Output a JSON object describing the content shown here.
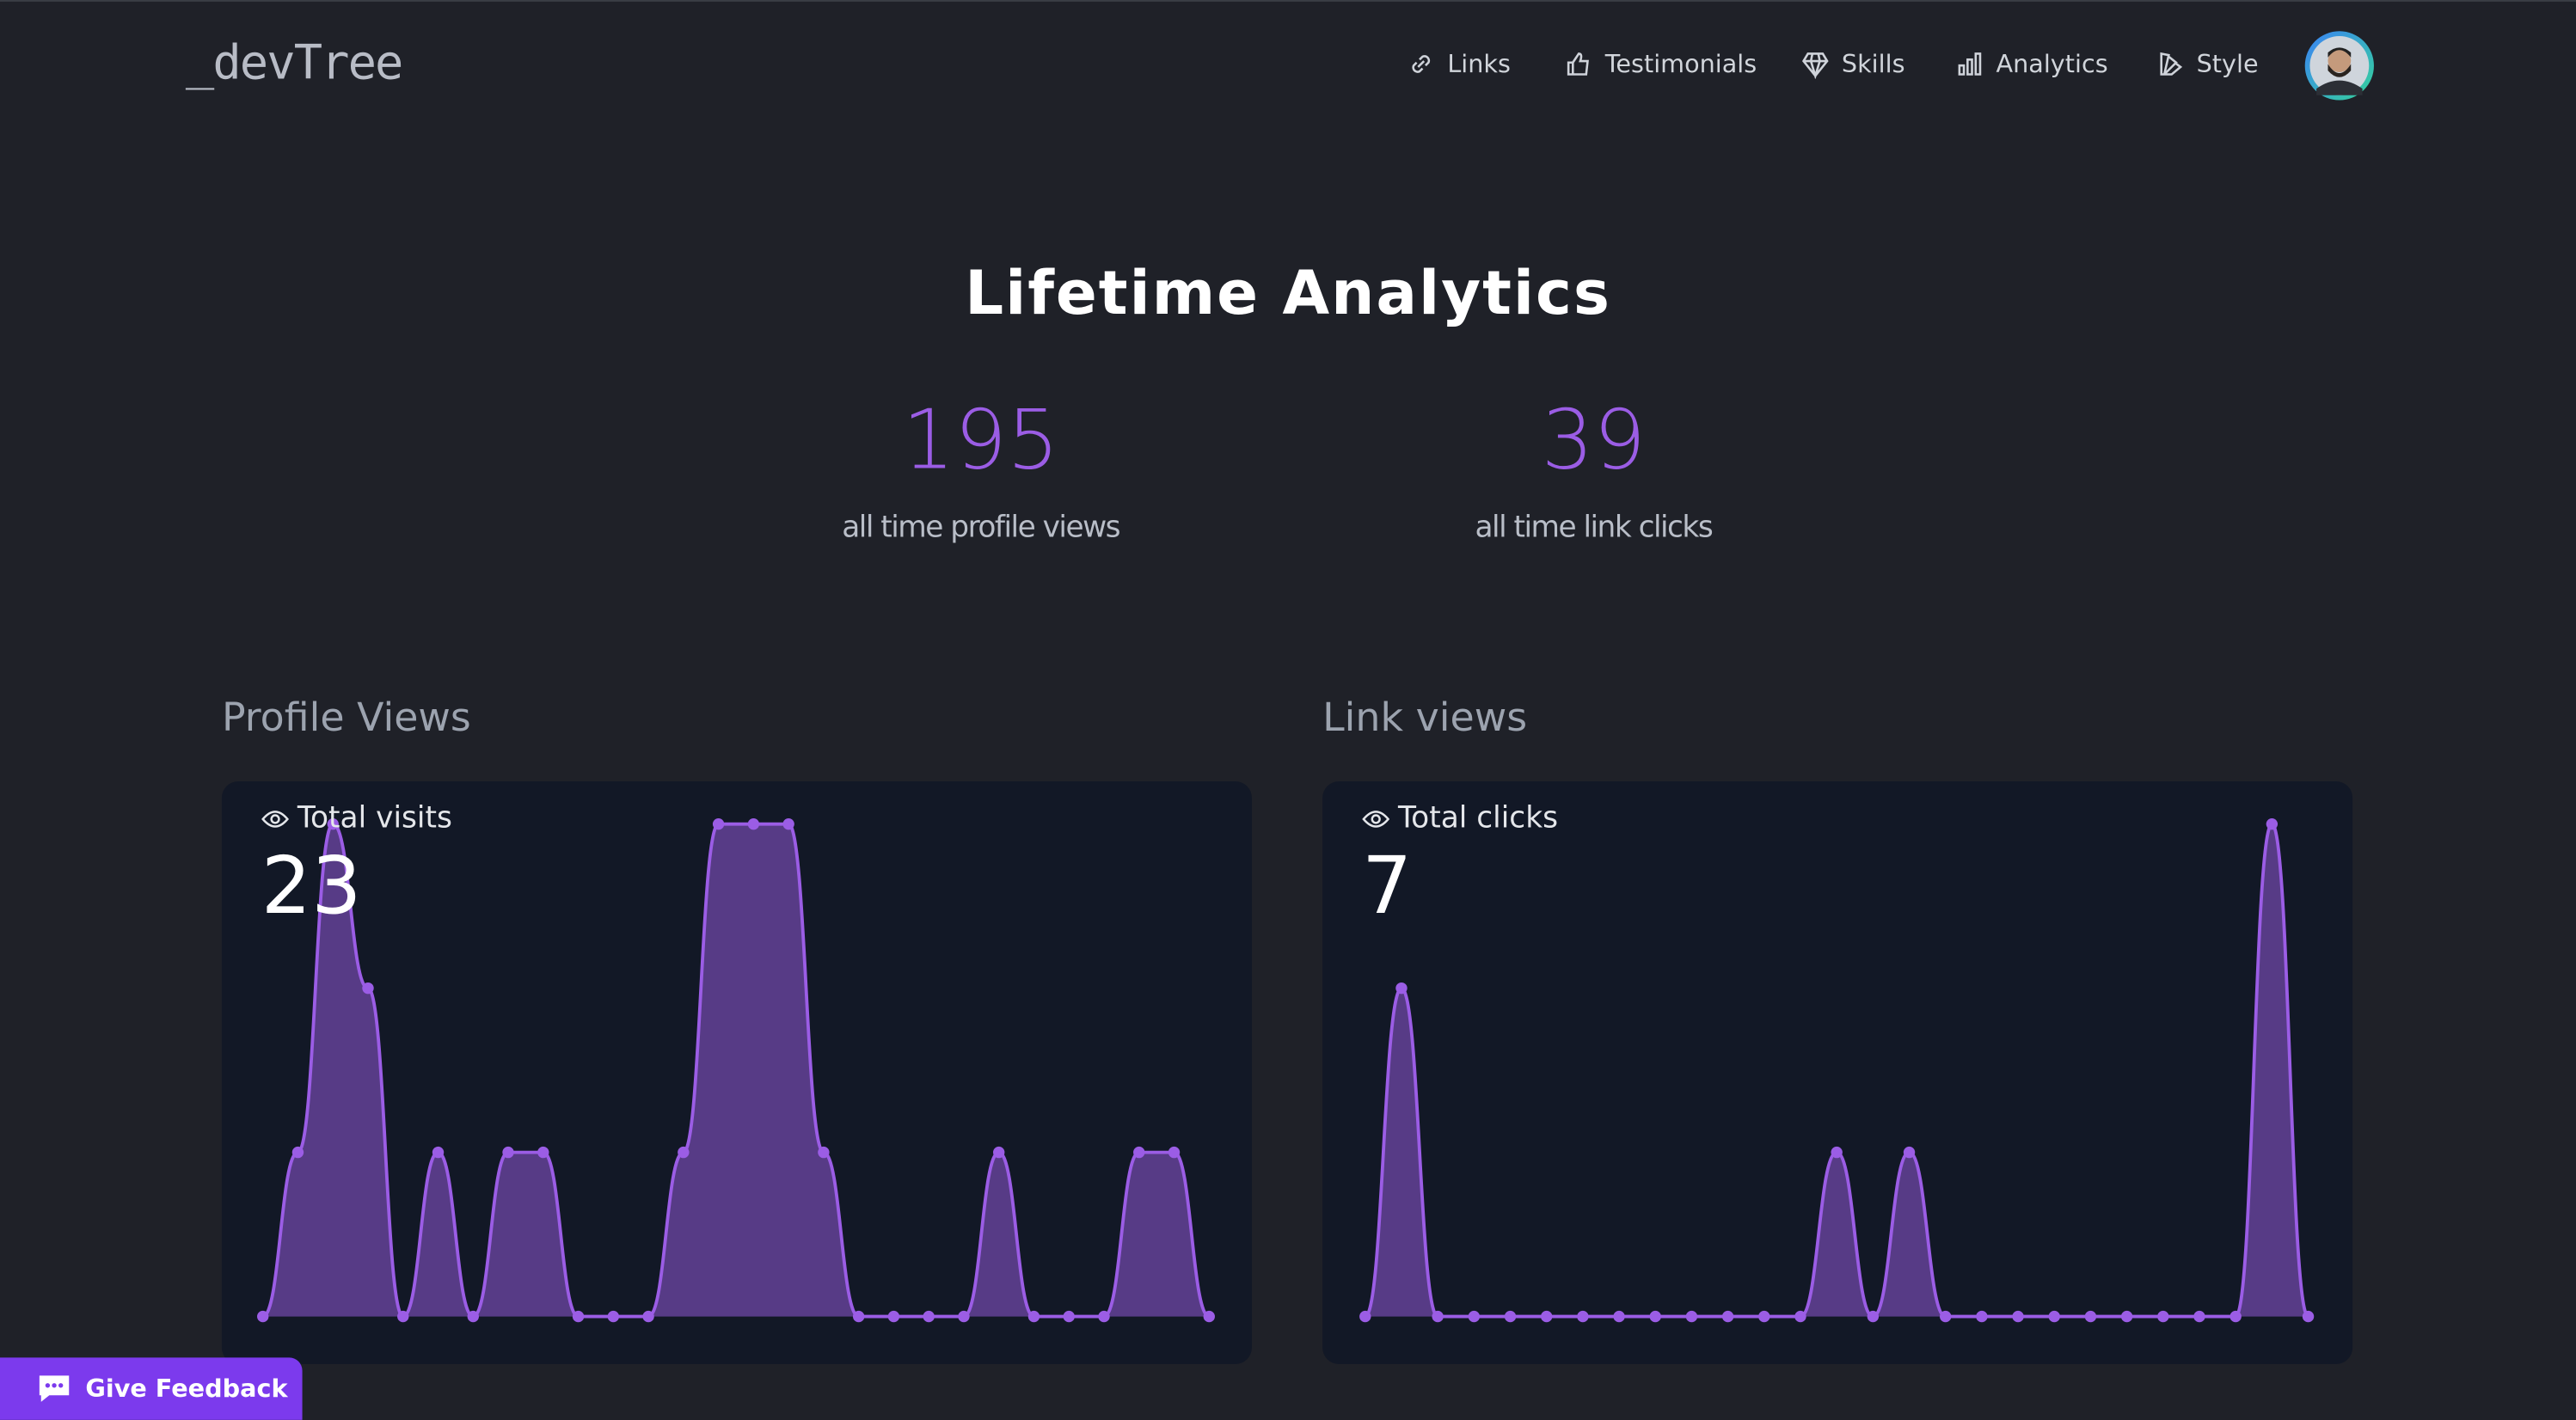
{
  "nav": {
    "logo": "_devTree",
    "items": [
      "Links",
      "Testimonials",
      "Skills",
      "Analytics",
      "Style"
    ]
  },
  "title": "Lifetime Analytics",
  "stats": [
    {
      "value": 195,
      "label": "all time profile views"
    },
    {
      "value": 39,
      "label": "all time link clicks"
    }
  ],
  "charts": [
    {
      "type": "area",
      "heading": "Profile Views",
      "label": "Total visits",
      "total": 23,
      "color": "#9b5de5",
      "ylim": [
        0,
        3
      ],
      "values": [
        0,
        1,
        3,
        2,
        0,
        1,
        0,
        1,
        1,
        0,
        0,
        0,
        1,
        3,
        3,
        3,
        1,
        0,
        0,
        0,
        0,
        1,
        0,
        0,
        0,
        1,
        1,
        0
      ]
    },
    {
      "type": "area",
      "heading": "Link views",
      "label": "Total clicks",
      "total": 7,
      "color": "#9b5de5",
      "ylim": [
        0,
        3
      ],
      "values": [
        0,
        2,
        0,
        0,
        0,
        0,
        0,
        0,
        0,
        0,
        0,
        0,
        0,
        1,
        0,
        1,
        0,
        0,
        0,
        0,
        0,
        0,
        0,
        0,
        0,
        3,
        0
      ]
    }
  ],
  "feedback": "Give Feedback"
}
